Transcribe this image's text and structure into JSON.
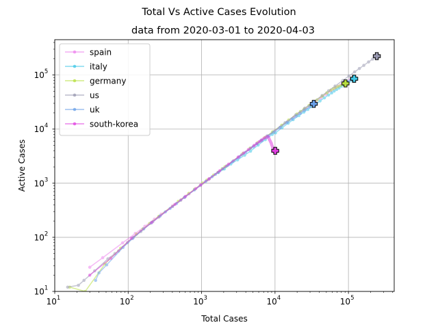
{
  "chart_data": {
    "type": "line",
    "title": "Total Vs Active Cases Evolution",
    "subtitle": "data from 2020-03-01 to 2020-04-03",
    "xlabel": "Total Cases",
    "ylabel": "Active Cases",
    "xscale": "log",
    "yscale": "log",
    "xlim": [
      10,
      420000
    ],
    "ylim": [
      10,
      450000
    ],
    "grid": true,
    "legend_position": "top-left",
    "x_ticks": [
      {
        "value": 10,
        "base": "10",
        "exp": "1"
      },
      {
        "value": 100,
        "base": "10",
        "exp": "2"
      },
      {
        "value": 1000,
        "base": "10",
        "exp": "3"
      },
      {
        "value": 10000,
        "base": "10",
        "exp": "4"
      },
      {
        "value": 100000,
        "base": "10",
        "exp": "5"
      }
    ],
    "y_ticks": [
      {
        "value": 10,
        "base": "10",
        "exp": "1"
      },
      {
        "value": 100,
        "base": "10",
        "exp": "2"
      },
      {
        "value": 1000,
        "base": "10",
        "exp": "3"
      },
      {
        "value": 10000,
        "base": "10",
        "exp": "4"
      },
      {
        "value": 100000,
        "base": "10",
        "exp": "5"
      }
    ],
    "series": [
      {
        "name": "spain",
        "color": "#ee82ee",
        "x": [
          30,
          45,
          84,
          125,
          169,
          228,
          282,
          401,
          525,
          674,
          1231,
          1695,
          2277,
          3146,
          5232,
          6391,
          7988,
          9942,
          11826,
          14769,
          18077,
          21571,
          25496,
          29909,
          35480,
          42058,
          49515,
          57786,
          65719,
          73235,
          80110,
          87956,
          95923,
          104118,
          112065,
          119199
        ],
        "y": [
          28,
          42,
          79,
          118,
          160,
          216,
          268,
          380,
          494,
          634,
          1156,
          1600,
          2140,
          2950,
          4900,
          5990,
          7470,
          9250,
          10900,
          13700,
          16700,
          19800,
          23300,
          27100,
          32000,
          37600,
          43900,
          50700,
          56700,
          62000,
          66400,
          71000,
          76000,
          80500,
          83500,
          85500
        ]
      },
      {
        "name": "italy",
        "color": "#40c8e8",
        "x": [
          1694,
          2036,
          2502,
          3089,
          3858,
          4636,
          5883,
          7375,
          9172,
          10149,
          12462,
          15113,
          17660,
          21157,
          24747,
          27980,
          31506,
          35713,
          41035,
          47021,
          53578,
          59138,
          63927,
          69176,
          74386,
          80589,
          86498,
          92472,
          97689,
          101739,
          105792,
          110574,
          115242,
          119827
        ],
        "y": [
          1577,
          1835,
          2263,
          2706,
          3296,
          3916,
          5061,
          6387,
          7985,
          8514,
          10590,
          12839,
          14955,
          17750,
          20603,
          23073,
          26062,
          28710,
          33190,
          37860,
          42681,
          46638,
          50418,
          54030,
          57521,
          62013,
          66414,
          70065,
          73880,
          75528,
          77635,
          80572,
          83049,
          85388
        ]
      },
      {
        "name": "germany",
        "color": "#b8e040",
        "x": [
          16,
          26,
          48,
          79,
          130,
          159,
          196,
          262,
          482,
          670,
          799,
          1040,
          1176,
          1457,
          1908,
          2078,
          3675,
          4585,
          5795,
          7272,
          9257,
          12327,
          15320,
          19848,
          22213,
          24873,
          29056,
          32986,
          37323,
          43938,
          50871,
          57695,
          62095,
          66885,
          71808,
          77872,
          84794,
          91159
        ],
        "y": [
          12,
          10,
          32,
          63,
          114,
          143,
          180,
          245,
          463,
          648,
          773,
          1011,
          1142,
          1414,
          1852,
          2015,
          3567,
          4445,
          5611,
          7002,
          8915,
          11816,
          14722,
          19025,
          21199,
          23515,
          27384,
          30850,
          34711,
          40635,
          46829,
          52734,
          55866,
          58898,
          61247,
          63906,
          66508,
          70000
        ]
      },
      {
        "name": "us",
        "color": "#9898b0",
        "x": [
          15,
          21,
          25,
          35,
          53,
          66,
          74,
          98,
          118,
          149,
          217,
          262,
          402,
          518,
          583,
          959,
          1281,
          1663,
          2179,
          2727,
          3499,
          4632,
          6421,
          7786,
          13680,
          19101,
          25493,
          33276,
          43847,
          53740,
          65778,
          83836,
          101657,
          121478,
          140886,
          161807,
          188172,
          213372,
          243453
        ],
        "y": [
          12,
          13,
          16,
          24,
          40,
          50,
          56,
          80,
          100,
          128,
          195,
          236,
          370,
          483,
          544,
          906,
          1210,
          1580,
          2080,
          2610,
          3350,
          4440,
          6150,
          7460,
          13100,
          18300,
          24400,
          31800,
          41800,
          51100,
          62400,
          79300,
          95900,
          114100,
          132000,
          150700,
          174600,
          197000,
          223600
        ]
      },
      {
        "name": "uk",
        "color": "#6aa0e8",
        "x": [
          36,
          40,
          51,
          85,
          115,
          163,
          206,
          273,
          321,
          373,
          456,
          590,
          798,
          1140,
          1391,
          1543,
          1950,
          2626,
          3269,
          3983,
          5018,
          5683,
          6650,
          8077,
          9529,
          11658,
          14543,
          17089,
          19522,
          22141,
          25150,
          29474,
          33718
        ],
        "y": [
          16,
          22,
          31,
          65,
          95,
          143,
          184,
          249,
          295,
          342,
          422,
          553,
          751,
          1083,
          1319,
          1458,
          1850,
          2482,
          3087,
          3730,
          4725,
          5347,
          6195,
          7446,
          8739,
          10653,
          13221,
          15398,
          17476,
          19661,
          22194,
          25690,
          29300
        ]
      },
      {
        "name": "south-korea",
        "color": "#e040e0",
        "x": [
          30,
          58,
          111,
          209,
          433,
          602,
          833,
          977,
          1261,
          1766,
          2337,
          3150,
          3736,
          4335,
          5186,
          5621,
          6088,
          6593,
          7041,
          7314,
          7478,
          7513,
          7755,
          7869,
          7979,
          8086,
          8162,
          8236,
          8320,
          8413,
          8565,
          8652,
          8799,
          8897,
          8961,
          9037,
          9137,
          9241,
          9332,
          9478,
          9583,
          9661,
          9786,
          9887,
          9976,
          10062
        ],
        "y": [
          20,
          41,
          96,
          188,
          406,
          571,
          796,
          935,
          1207,
          1701,
          2255,
          3045,
          3612,
          4184,
          5002,
          5418,
          5865,
          6331,
          6751,
          6881,
          7052,
          6945,
          7105,
          7146,
          7212,
          7139,
          7027,
          6838,
          6607,
          6336,
          6087,
          5906,
          5655,
          5485,
          5278,
          5075,
          4917,
          4664,
          4467,
          4335,
          4190,
          4145,
          4086,
          4104,
          4044,
          3976
        ]
      }
    ]
  }
}
